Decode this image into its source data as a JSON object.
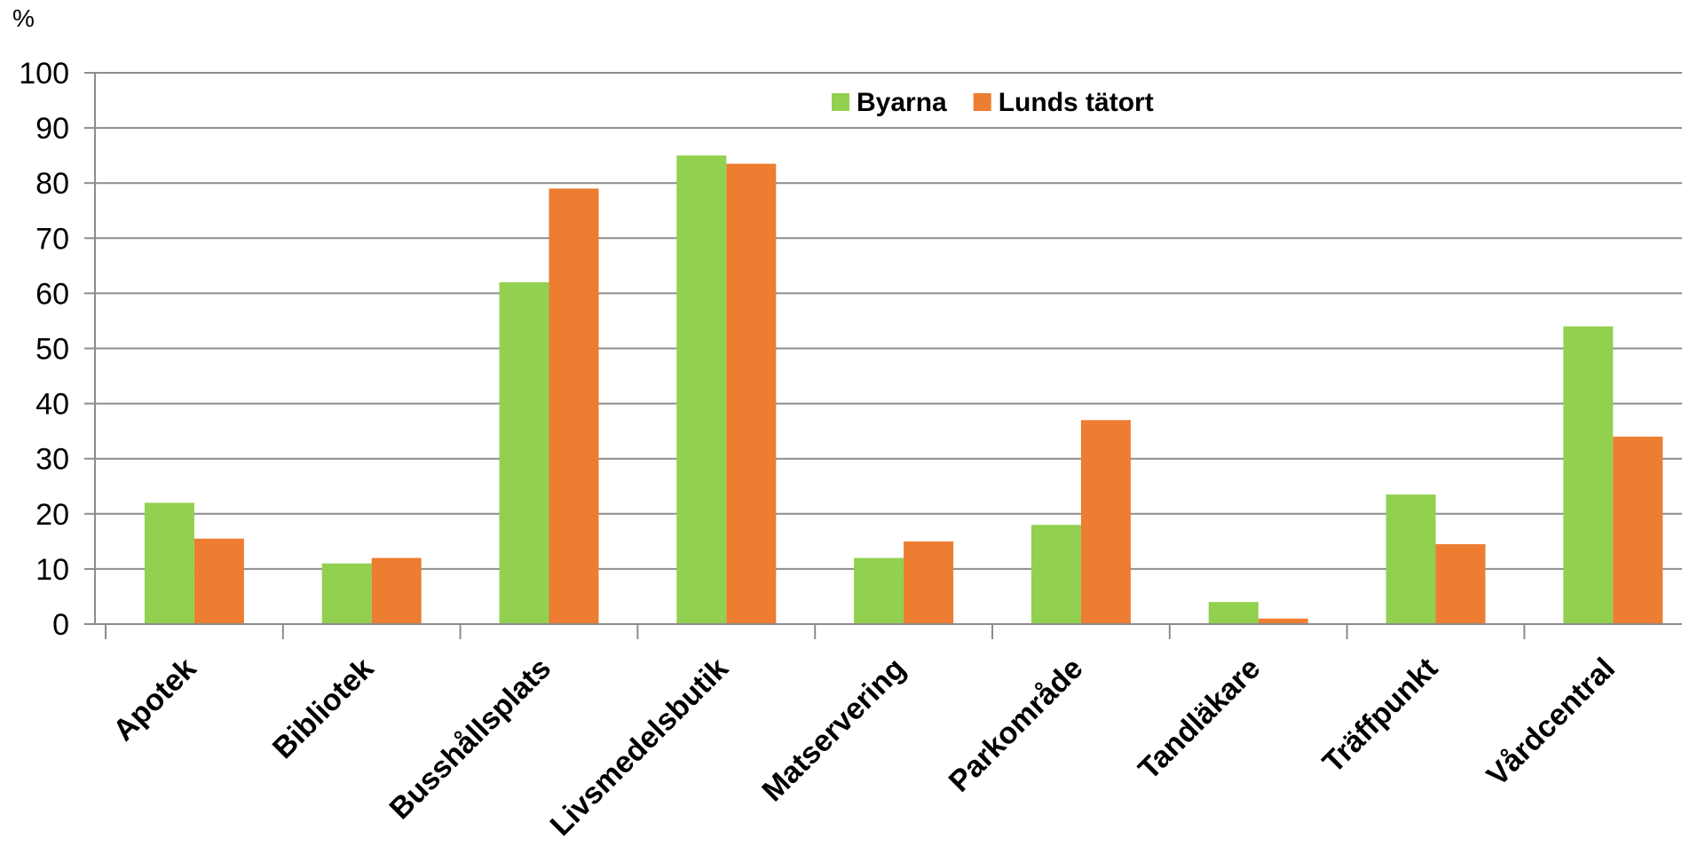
{
  "chart_data": {
    "type": "bar",
    "ylabel": "%",
    "ylim": [
      0,
      100
    ],
    "yticks": [
      "0",
      "10",
      "20",
      "30",
      "40",
      "50",
      "60",
      "70",
      "80",
      "90",
      "100"
    ],
    "grid": true,
    "legend_position": "top-center",
    "categories": [
      "Apotek",
      "Bibliotek",
      "Busshållsplats",
      "Livsmedelsbutik",
      "Matservering",
      "Parkområde",
      "Tandläkare",
      "Träffpunkt",
      "Vårdcentral"
    ],
    "series": [
      {
        "name": "Byarna",
        "color": "#92d050",
        "values": [
          22,
          11,
          62,
          85,
          12,
          18,
          4,
          23.5,
          54
        ]
      },
      {
        "name": "Lunds tätort",
        "color": "#ed7d31",
        "values": [
          15.5,
          12,
          79,
          83.5,
          15,
          37,
          1,
          14.5,
          34
        ]
      }
    ]
  }
}
